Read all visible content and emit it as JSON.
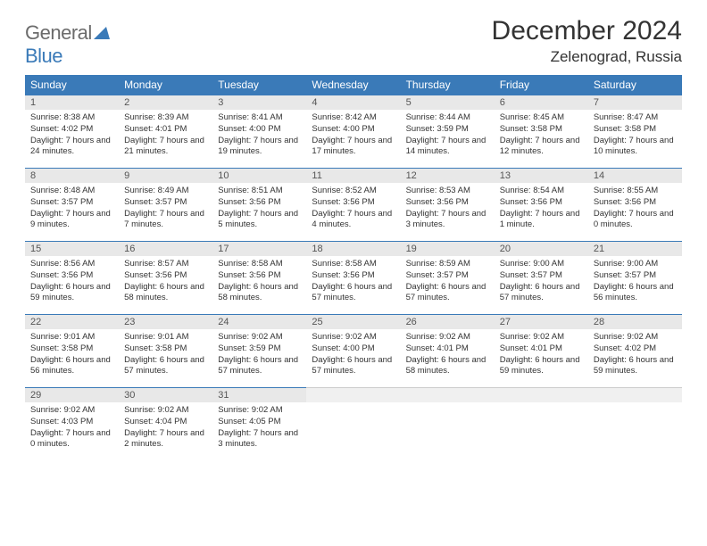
{
  "brand": {
    "name_part1": "General",
    "name_part2": "Blue"
  },
  "title": "December 2024",
  "location": "Zelenograd, Russia",
  "colors": {
    "header_bg": "#3a7ab8",
    "header_text": "#ffffff",
    "daynum_bg": "#e8e8e8",
    "daynum_border": "#3a7ab8",
    "body_text": "#333333",
    "logo_gray": "#6b6b6b",
    "logo_blue": "#3a7ab8",
    "page_bg": "#ffffff"
  },
  "weekdays": [
    "Sunday",
    "Monday",
    "Tuesday",
    "Wednesday",
    "Thursday",
    "Friday",
    "Saturday"
  ],
  "weeks": [
    [
      {
        "n": "1",
        "sr": "Sunrise: 8:38 AM",
        "ss": "Sunset: 4:02 PM",
        "dl": "Daylight: 7 hours and 24 minutes."
      },
      {
        "n": "2",
        "sr": "Sunrise: 8:39 AM",
        "ss": "Sunset: 4:01 PM",
        "dl": "Daylight: 7 hours and 21 minutes."
      },
      {
        "n": "3",
        "sr": "Sunrise: 8:41 AM",
        "ss": "Sunset: 4:00 PM",
        "dl": "Daylight: 7 hours and 19 minutes."
      },
      {
        "n": "4",
        "sr": "Sunrise: 8:42 AM",
        "ss": "Sunset: 4:00 PM",
        "dl": "Daylight: 7 hours and 17 minutes."
      },
      {
        "n": "5",
        "sr": "Sunrise: 8:44 AM",
        "ss": "Sunset: 3:59 PM",
        "dl": "Daylight: 7 hours and 14 minutes."
      },
      {
        "n": "6",
        "sr": "Sunrise: 8:45 AM",
        "ss": "Sunset: 3:58 PM",
        "dl": "Daylight: 7 hours and 12 minutes."
      },
      {
        "n": "7",
        "sr": "Sunrise: 8:47 AM",
        "ss": "Sunset: 3:58 PM",
        "dl": "Daylight: 7 hours and 10 minutes."
      }
    ],
    [
      {
        "n": "8",
        "sr": "Sunrise: 8:48 AM",
        "ss": "Sunset: 3:57 PM",
        "dl": "Daylight: 7 hours and 9 minutes."
      },
      {
        "n": "9",
        "sr": "Sunrise: 8:49 AM",
        "ss": "Sunset: 3:57 PM",
        "dl": "Daylight: 7 hours and 7 minutes."
      },
      {
        "n": "10",
        "sr": "Sunrise: 8:51 AM",
        "ss": "Sunset: 3:56 PM",
        "dl": "Daylight: 7 hours and 5 minutes."
      },
      {
        "n": "11",
        "sr": "Sunrise: 8:52 AM",
        "ss": "Sunset: 3:56 PM",
        "dl": "Daylight: 7 hours and 4 minutes."
      },
      {
        "n": "12",
        "sr": "Sunrise: 8:53 AM",
        "ss": "Sunset: 3:56 PM",
        "dl": "Daylight: 7 hours and 3 minutes."
      },
      {
        "n": "13",
        "sr": "Sunrise: 8:54 AM",
        "ss": "Sunset: 3:56 PM",
        "dl": "Daylight: 7 hours and 1 minute."
      },
      {
        "n": "14",
        "sr": "Sunrise: 8:55 AM",
        "ss": "Sunset: 3:56 PM",
        "dl": "Daylight: 7 hours and 0 minutes."
      }
    ],
    [
      {
        "n": "15",
        "sr": "Sunrise: 8:56 AM",
        "ss": "Sunset: 3:56 PM",
        "dl": "Daylight: 6 hours and 59 minutes."
      },
      {
        "n": "16",
        "sr": "Sunrise: 8:57 AM",
        "ss": "Sunset: 3:56 PM",
        "dl": "Daylight: 6 hours and 58 minutes."
      },
      {
        "n": "17",
        "sr": "Sunrise: 8:58 AM",
        "ss": "Sunset: 3:56 PM",
        "dl": "Daylight: 6 hours and 58 minutes."
      },
      {
        "n": "18",
        "sr": "Sunrise: 8:58 AM",
        "ss": "Sunset: 3:56 PM",
        "dl": "Daylight: 6 hours and 57 minutes."
      },
      {
        "n": "19",
        "sr": "Sunrise: 8:59 AM",
        "ss": "Sunset: 3:57 PM",
        "dl": "Daylight: 6 hours and 57 minutes."
      },
      {
        "n": "20",
        "sr": "Sunrise: 9:00 AM",
        "ss": "Sunset: 3:57 PM",
        "dl": "Daylight: 6 hours and 57 minutes."
      },
      {
        "n": "21",
        "sr": "Sunrise: 9:00 AM",
        "ss": "Sunset: 3:57 PM",
        "dl": "Daylight: 6 hours and 56 minutes."
      }
    ],
    [
      {
        "n": "22",
        "sr": "Sunrise: 9:01 AM",
        "ss": "Sunset: 3:58 PM",
        "dl": "Daylight: 6 hours and 56 minutes."
      },
      {
        "n": "23",
        "sr": "Sunrise: 9:01 AM",
        "ss": "Sunset: 3:58 PM",
        "dl": "Daylight: 6 hours and 57 minutes."
      },
      {
        "n": "24",
        "sr": "Sunrise: 9:02 AM",
        "ss": "Sunset: 3:59 PM",
        "dl": "Daylight: 6 hours and 57 minutes."
      },
      {
        "n": "25",
        "sr": "Sunrise: 9:02 AM",
        "ss": "Sunset: 4:00 PM",
        "dl": "Daylight: 6 hours and 57 minutes."
      },
      {
        "n": "26",
        "sr": "Sunrise: 9:02 AM",
        "ss": "Sunset: 4:01 PM",
        "dl": "Daylight: 6 hours and 58 minutes."
      },
      {
        "n": "27",
        "sr": "Sunrise: 9:02 AM",
        "ss": "Sunset: 4:01 PM",
        "dl": "Daylight: 6 hours and 59 minutes."
      },
      {
        "n": "28",
        "sr": "Sunrise: 9:02 AM",
        "ss": "Sunset: 4:02 PM",
        "dl": "Daylight: 6 hours and 59 minutes."
      }
    ],
    [
      {
        "n": "29",
        "sr": "Sunrise: 9:02 AM",
        "ss": "Sunset: 4:03 PM",
        "dl": "Daylight: 7 hours and 0 minutes."
      },
      {
        "n": "30",
        "sr": "Sunrise: 9:02 AM",
        "ss": "Sunset: 4:04 PM",
        "dl": "Daylight: 7 hours and 2 minutes."
      },
      {
        "n": "31",
        "sr": "Sunrise: 9:02 AM",
        "ss": "Sunset: 4:05 PM",
        "dl": "Daylight: 7 hours and 3 minutes."
      },
      {
        "empty": true
      },
      {
        "empty": true
      },
      {
        "empty": true
      },
      {
        "empty": true
      }
    ]
  ]
}
